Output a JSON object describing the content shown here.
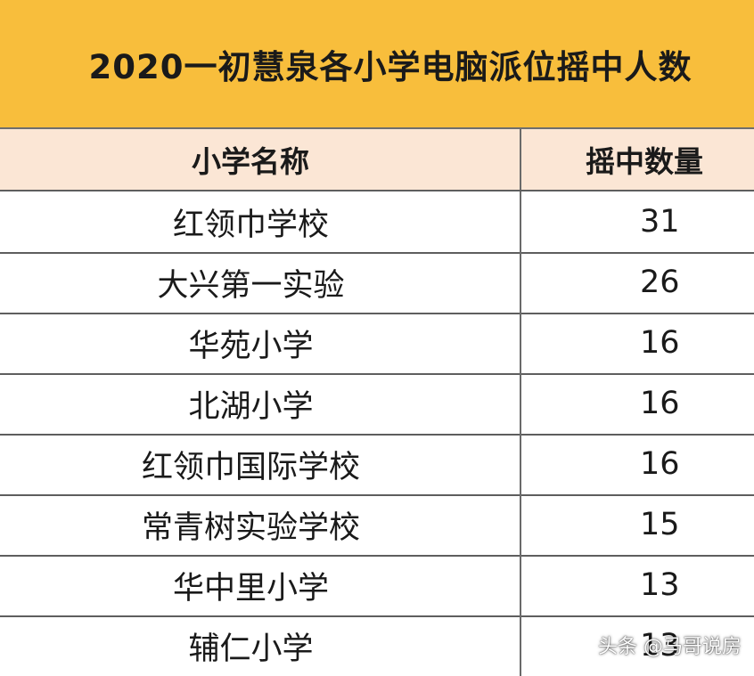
{
  "title": "2020一初慧泉各小学电脑派位摇中人数",
  "table": {
    "headers": {
      "name": "小学名称",
      "count": "摇中数量"
    },
    "rows": [
      {
        "name": "红领巾学校",
        "count": "31"
      },
      {
        "name": "大兴第一实验",
        "count": "26"
      },
      {
        "name": "华苑小学",
        "count": "16"
      },
      {
        "name": "北湖小学",
        "count": "16"
      },
      {
        "name": "红领巾国际学校",
        "count": "16"
      },
      {
        "name": "常青树实验学校",
        "count": "15"
      },
      {
        "name": "华中里小学",
        "count": "13"
      },
      {
        "name": "辅仁小学",
        "count": "13"
      }
    ]
  },
  "watermark": "头条 @马哥说房",
  "colors": {
    "title_bg": "#f8be3c",
    "header_bg": "#fbe6d5",
    "border": "#6e6e6e"
  }
}
